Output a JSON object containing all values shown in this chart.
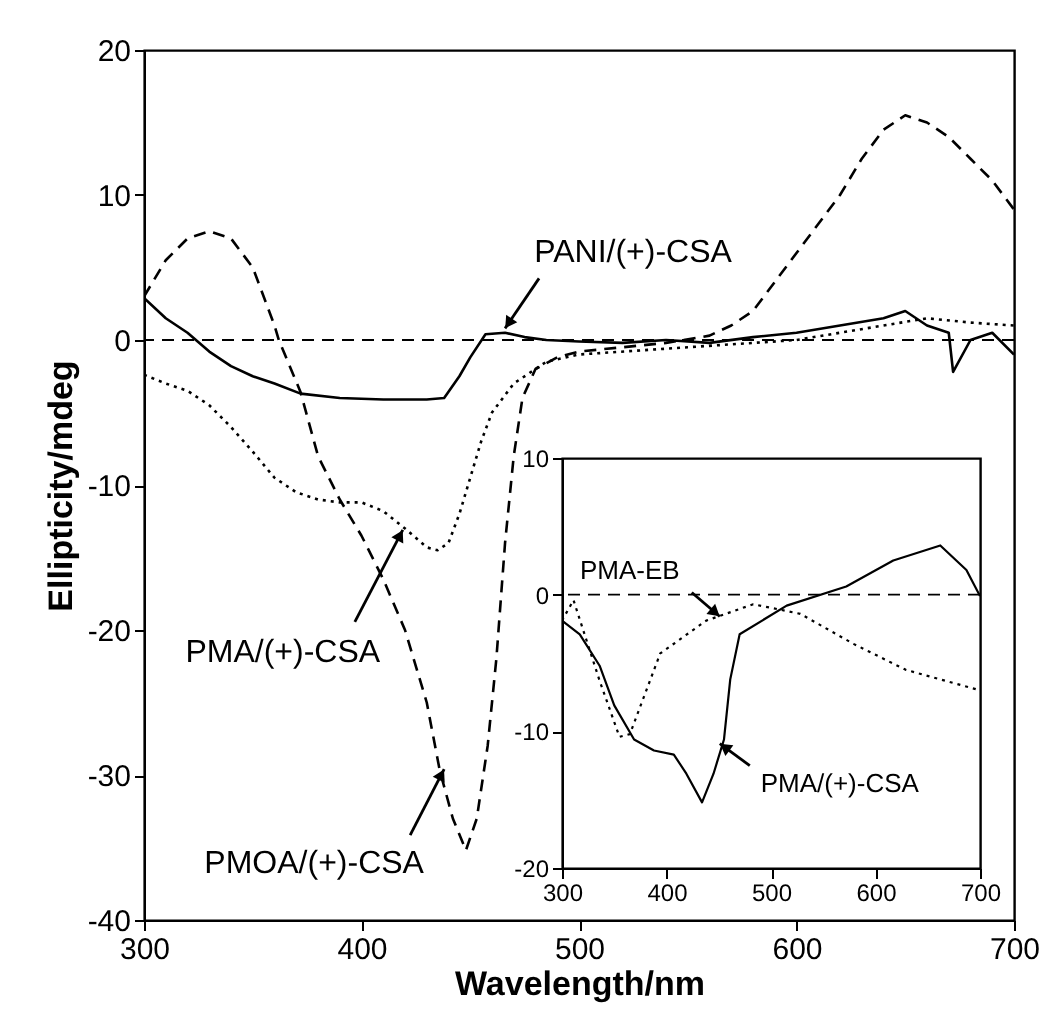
{
  "chart_data": [
    {
      "type": "line",
      "xlabel": "Wavelength/nm",
      "ylabel": "Ellipticity/mdeg",
      "xlim": [
        300,
        700
      ],
      "xticks": [
        300,
        400,
        500,
        600,
        700
      ],
      "ylim": [
        -40,
        20
      ],
      "yticks": [
        -40,
        -30,
        -20,
        -10,
        0,
        10,
        20
      ],
      "grid": false,
      "series": [
        {
          "color": "#000000",
          "line_style": "solid",
          "x": [
            300,
            310,
            320,
            330,
            340,
            350,
            360,
            372,
            390,
            410,
            430,
            438,
            445,
            450,
            457,
            466,
            475,
            485,
            500,
            520,
            540,
            560,
            580,
            600,
            620,
            640,
            650,
            660,
            670,
            672,
            680,
            690,
            700
          ],
          "values": [
            2.9,
            1.5,
            0.5,
            -0.8,
            -1.8,
            -2.5,
            -3,
            -3.7,
            -4,
            -4.1,
            -4.1,
            -4,
            -2.5,
            -1.2,
            0.4,
            0.5,
            0.2,
            0,
            -0.1,
            -0.2,
            0,
            -0.2,
            0.2,
            0.5,
            1,
            1.5,
            2,
            1,
            0.5,
            -2.2,
            0,
            0.5,
            -1
          ]
        },
        {
          "color": "#000000",
          "line_style": "dashed",
          "x": [
            300,
            310,
            320,
            330,
            340,
            350,
            360,
            362,
            372,
            380,
            390,
            400,
            410,
            420,
            430,
            436,
            442,
            448,
            453,
            458,
            462,
            466,
            470,
            474,
            480,
            490,
            500,
            520,
            540,
            560,
            570,
            580,
            590,
            600,
            610,
            620,
            630,
            640,
            650,
            660,
            670,
            680,
            690,
            700
          ],
          "values": [
            3,
            5.5,
            7,
            7.5,
            7,
            5,
            1,
            0,
            -3.6,
            -8,
            -11,
            -13.5,
            -16.5,
            -20,
            -25,
            -29.7,
            -33,
            -35.2,
            -33,
            -28,
            -22,
            -14,
            -8,
            -4,
            -2,
            -1.2,
            -0.8,
            -0.5,
            -0.2,
            0.3,
            1,
            2,
            4,
            6,
            8,
            10,
            12.5,
            14.5,
            15.5,
            15,
            14,
            12.5,
            11,
            9
          ]
        },
        {
          "color": "#000000",
          "line_style": "dotted",
          "x": [
            300,
            310,
            320,
            330,
            340,
            350,
            360,
            370,
            380,
            390,
            400,
            410,
            420,
            430,
            435,
            440,
            445,
            450,
            455,
            460,
            470,
            485,
            500,
            550,
            600,
            640,
            660,
            680,
            700
          ],
          "values": [
            -2.4,
            -3,
            -3.5,
            -4.5,
            -6,
            -7.7,
            -9.5,
            -10.5,
            -11,
            -11.2,
            -11.2,
            -11.8,
            -13,
            -14.3,
            -14.5,
            -14,
            -12,
            -9.5,
            -7,
            -5,
            -3,
            -1.5,
            -1,
            -0.5,
            0,
            1,
            1.5,
            1.2,
            1
          ]
        }
      ],
      "ref_lines": [
        {
          "axis": "y",
          "value": 0,
          "line_style": "dashed"
        }
      ],
      "annotations": [
        {
          "text": "PANI/(+)-CSA",
          "x": 466,
          "y": 0.8
        },
        {
          "text": "PMA/(+)-CSA",
          "x": 419,
          "y": -13.1
        },
        {
          "text": "PMOA/(+)-CSA",
          "x": 438,
          "y": -29.6
        }
      ]
    },
    {
      "type": "line",
      "xlim": [
        300,
        700
      ],
      "xticks": [
        300,
        400,
        500,
        600,
        700
      ],
      "ylim": [
        -20,
        10
      ],
      "yticks": [
        -20,
        -10,
        0,
        10
      ],
      "grid": false,
      "series": [
        {
          "color": "#000000",
          "line_style": "solid",
          "x": [
            300,
            317,
            336,
            350,
            369,
            388,
            407,
            419,
            434,
            445,
            455,
            461,
            470,
            515,
            572,
            617,
            662,
            687,
            700
          ],
          "values": [
            -1.9,
            -2.9,
            -5.2,
            -8.1,
            -10.6,
            -11.4,
            -11.7,
            -13.1,
            -15.2,
            -13.1,
            -10.6,
            -6.2,
            -2.9,
            -0.8,
            0.6,
            2.5,
            3.6,
            1.8,
            -0.1
          ]
        },
        {
          "color": "#000000",
          "line_style": "dotted",
          "x": [
            300,
            311,
            336,
            355,
            365,
            394,
            438,
            483,
            528,
            579,
            629,
            700
          ],
          "values": [
            -1.9,
            -0.4,
            -6.3,
            -10.4,
            -10.2,
            -4.3,
            -1.9,
            -0.7,
            -1.4,
            -3.6,
            -5.5,
            -7
          ]
        }
      ],
      "ref_lines": [
        {
          "axis": "y",
          "value": 0,
          "line_style": "dashed"
        }
      ],
      "annotations": [
        {
          "text": "PMA-EB",
          "x": 451,
          "y": -1.6
        },
        {
          "text": "PMA/(+)-CSA",
          "x": 451,
          "y": -10.9
        }
      ]
    }
  ]
}
